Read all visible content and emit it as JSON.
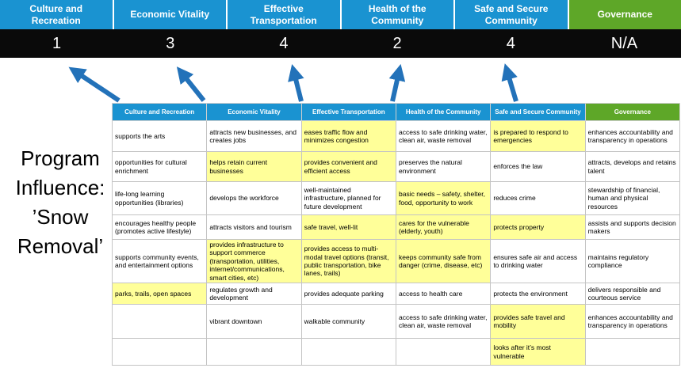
{
  "title": {
    "lines": [
      "Program",
      "Influence:",
      "’Snow",
      "Removal’"
    ]
  },
  "colors": {
    "category_blue": "#1a93d1",
    "governance_green": "#5ea728",
    "highlight_yellow": "#ffff99",
    "arrow_blue": "#2372b9",
    "score_bar_black": "#0a0a0a"
  },
  "banner": {
    "items": [
      {
        "label": "Culture and Recreation",
        "score": "1"
      },
      {
        "label": "Economic Vitality",
        "score": "3"
      },
      {
        "label": "Effective Transportation",
        "score": "4"
      },
      {
        "label": "Health of the Community",
        "score": "2"
      },
      {
        "label": "Safe and Secure Community",
        "score": "4"
      },
      {
        "label": "Governance",
        "score": "N/A"
      }
    ]
  },
  "table": {
    "headers": [
      "Culture and Recreation",
      "Economic Vitality",
      "Effective Transportation",
      "Health of the Community",
      "Safe and Secure Community",
      "Governance"
    ],
    "rows": [
      {
        "cells": [
          {
            "text": "supports the arts",
            "highlight": false
          },
          {
            "text": "attracts new businesses, and creates jobs",
            "highlight": false
          },
          {
            "text": "eases traffic flow and minimizes congestion",
            "highlight": true
          },
          {
            "text": "access to safe drinking water, clean air, waste removal",
            "highlight": false
          },
          {
            "text": "is prepared to respond to emergencies",
            "highlight": true
          },
          {
            "text": "enhances accountability and transparency in operations",
            "highlight": false
          }
        ]
      },
      {
        "cells": [
          {
            "text": "opportunities for cultural enrichment",
            "highlight": false
          },
          {
            "text": "helps retain current businesses",
            "highlight": true
          },
          {
            "text": "provides convenient and efficient access",
            "highlight": true
          },
          {
            "text": "preserves the natural environment",
            "highlight": false
          },
          {
            "text": "enforces the law",
            "highlight": false
          },
          {
            "text": "attracts, develops and retains talent",
            "highlight": false
          }
        ]
      },
      {
        "cells": [
          {
            "text": "life-long learning opportunities (libraries)",
            "highlight": false
          },
          {
            "text": "develops the workforce",
            "highlight": false
          },
          {
            "text": "well-maintained infrastructure, planned for future development",
            "highlight": false
          },
          {
            "text": "basic needs – safety, shelter, food, opportunity to work",
            "highlight": true
          },
          {
            "text": "reduces crime",
            "highlight": false
          },
          {
            "text": "stewardship of financial, human and physical resources",
            "highlight": false
          }
        ]
      },
      {
        "cells": [
          {
            "text": "encourages healthy people (promotes active lifestyle)",
            "highlight": false
          },
          {
            "text": "attracts visitors and tourism",
            "highlight": false
          },
          {
            "text": "safe travel, well-lit",
            "highlight": true
          },
          {
            "text": "cares for the vulnerable (elderly, youth)",
            "highlight": true
          },
          {
            "text": "protects property",
            "highlight": true
          },
          {
            "text": "assists and supports decision makers",
            "highlight": false
          }
        ]
      },
      {
        "cells": [
          {
            "text": "supports community events, and entertainment options",
            "highlight": false
          },
          {
            "text": "provides infrastructure to support commerce (transportation, utilities, internet/communications, smart cities, etc)",
            "highlight": true
          },
          {
            "text": "provides access to multi-modal travel options (transit, public transportation, bike lanes, trails)",
            "highlight": true
          },
          {
            "text": "keeps community safe from danger (crime, disease, etc)",
            "highlight": true
          },
          {
            "text": "ensures safe air and access to drinking water",
            "highlight": false
          },
          {
            "text": "maintains regulatory compliance",
            "highlight": false
          }
        ]
      },
      {
        "cells": [
          {
            "text": "parks, trails, open spaces",
            "highlight": true
          },
          {
            "text": "regulates growth and development",
            "highlight": false
          },
          {
            "text": "provides adequate parking",
            "highlight": false
          },
          {
            "text": "access to health care",
            "highlight": false
          },
          {
            "text": "protects the environment",
            "highlight": false
          },
          {
            "text": "delivers responsible and courteous service",
            "highlight": false
          }
        ]
      },
      {
        "cells": [
          {
            "text": "",
            "highlight": false
          },
          {
            "text": "vibrant downtown",
            "highlight": false
          },
          {
            "text": "walkable community",
            "highlight": false
          },
          {
            "text": "access to safe drinking water, clean air, waste removal",
            "highlight": false
          },
          {
            "text": "provides safe travel and mobility",
            "highlight": true
          },
          {
            "text": "enhances accountability and transparency in operations",
            "highlight": false
          }
        ]
      },
      {
        "cells": [
          {
            "text": "",
            "highlight": false
          },
          {
            "text": "",
            "highlight": false
          },
          {
            "text": "",
            "highlight": false
          },
          {
            "text": "",
            "highlight": false
          },
          {
            "text": "looks after it’s most vulnerable",
            "highlight": true
          },
          {
            "text": "",
            "highlight": false
          }
        ]
      }
    ]
  }
}
